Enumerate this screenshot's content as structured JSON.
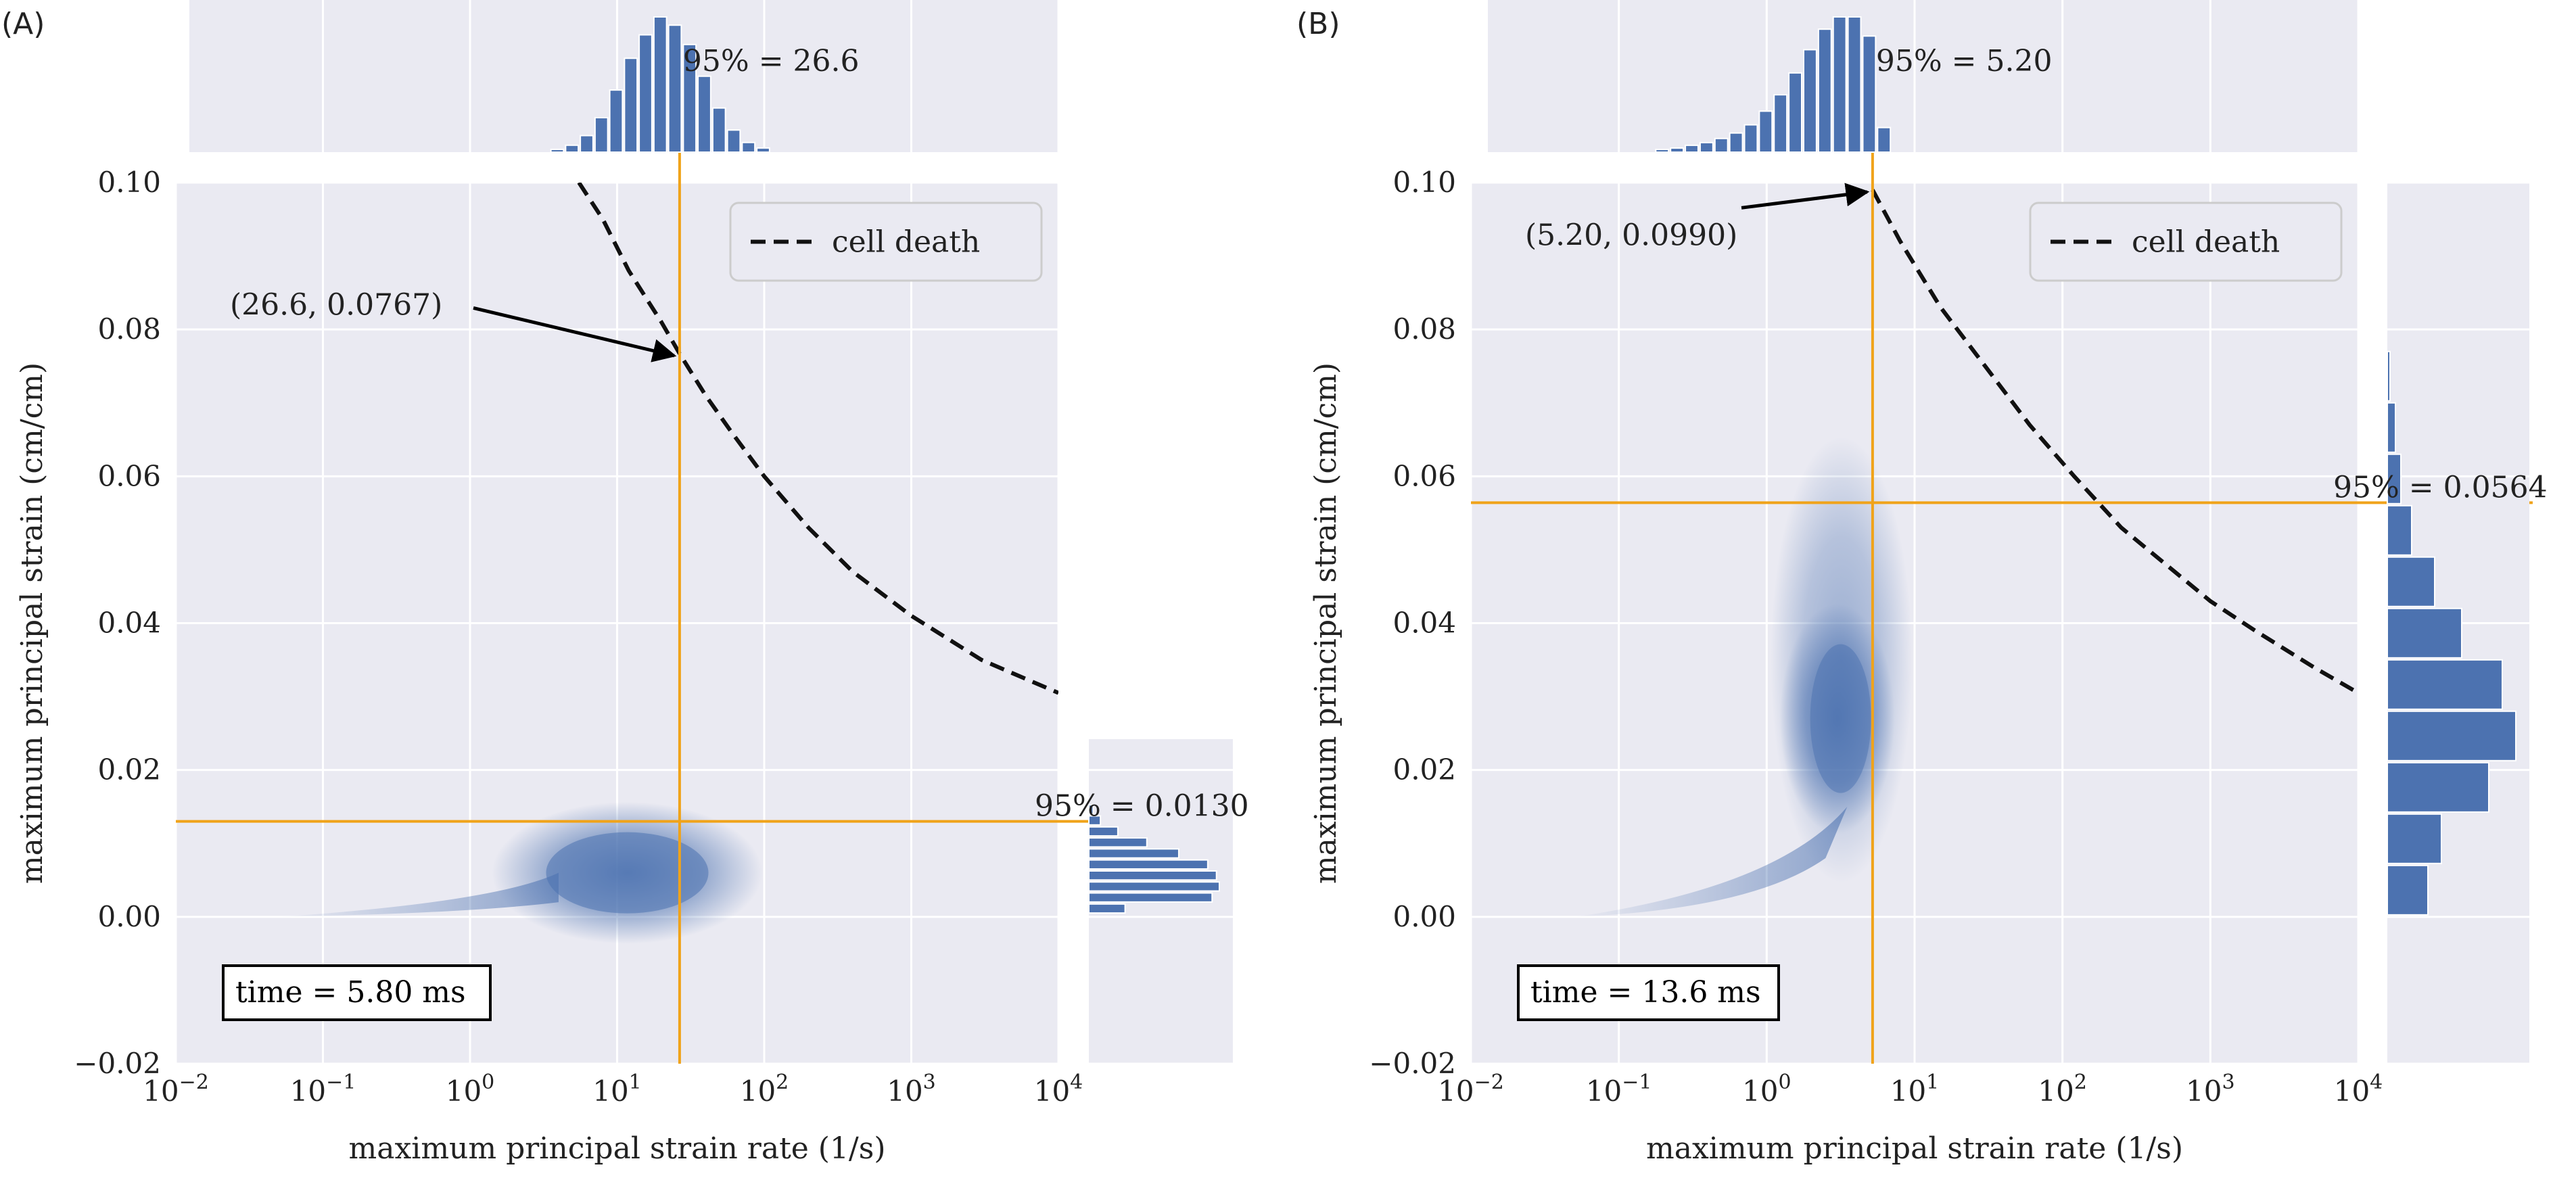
{
  "chart_data": [
    {
      "type": "scatter",
      "panel_label": "(A)",
      "xlabel": "maximum principal strain rate (1/s)",
      "ylabel": "maximum principal strain (cm/cm)",
      "x_scale": "log",
      "xlim": [
        0.01,
        10000
      ],
      "ylim": [
        -0.02,
        0.1
      ],
      "x_ticks": [
        "10",
        "10",
        "10",
        "10",
        "10",
        "10",
        "10"
      ],
      "x_tick_exponents": [
        "−2",
        "−1",
        "0",
        "1",
        "2",
        "3",
        "4"
      ],
      "x_tick_values": [
        0.01,
        0.1,
        1,
        10,
        100,
        1000,
        10000
      ],
      "y_ticks": [
        "0.10",
        "0.08",
        "0.06",
        "0.04",
        "0.02",
        "0.00",
        "−0.02"
      ],
      "y_tick_values": [
        0.1,
        0.08,
        0.06,
        0.04,
        0.02,
        0.0,
        -0.02
      ],
      "grid": true,
      "legend": {
        "entries": [
          "cell death"
        ],
        "placement": "top-right"
      },
      "cell_death_curve": {
        "x": [
          5.5,
          8,
          12,
          20,
          26.6,
          40,
          60,
          100,
          200,
          400,
          1000,
          3000,
          10000
        ],
        "y": [
          0.1,
          0.095,
          0.088,
          0.081,
          0.0767,
          0.071,
          0.066,
          0.06,
          0.053,
          0.047,
          0.041,
          0.035,
          0.0305
        ]
      },
      "threshold_x": 26.6,
      "threshold_y": 0.013,
      "annotation": "(26.6, 0.0767)",
      "annotation_point": [
        26.6,
        0.0767
      ],
      "top_label": "95% = 26.6",
      "right_label": "95% = 0.0130",
      "time_label": "time = 5.80 ms",
      "scatter_cloud": {
        "center_x": 10,
        "center_y": 0.006,
        "tail_from_x": 0.05
      },
      "top_histogram": {
        "bin_log_centers": [
          0.6,
          0.7,
          0.8,
          0.9,
          1.0,
          1.1,
          1.2,
          1.3,
          1.4,
          1.5,
          1.6,
          1.7,
          1.8,
          1.9,
          2.0
        ],
        "counts": [
          2,
          5,
          12,
          25,
          45,
          68,
          85,
          98,
          92,
          78,
          55,
          32,
          16,
          7,
          3
        ]
      },
      "right_histogram": {
        "bin_centers": [
          0.001,
          0.0025,
          0.004,
          0.0055,
          0.007,
          0.0085,
          0.01,
          0.0115,
          0.013,
          0.0145
        ],
        "counts": [
          25,
          85,
          90,
          88,
          82,
          62,
          40,
          20,
          8,
          3
        ]
      }
    },
    {
      "type": "scatter",
      "panel_label": "(B)",
      "xlabel": "maximum principal strain rate (1/s)",
      "ylabel": "maximum principal strain (cm/cm)",
      "x_scale": "log",
      "xlim": [
        0.01,
        10000
      ],
      "ylim": [
        -0.02,
        0.1
      ],
      "x_ticks": [
        "10",
        "10",
        "10",
        "10",
        "10",
        "10",
        "10"
      ],
      "x_tick_exponents": [
        "−2",
        "−1",
        "0",
        "1",
        "2",
        "3",
        "4"
      ],
      "x_tick_values": [
        0.01,
        0.1,
        1,
        10,
        100,
        1000,
        10000
      ],
      "y_ticks": [
        "0.10",
        "0.08",
        "0.06",
        "0.04",
        "0.02",
        "0.00",
        "−0.02"
      ],
      "y_tick_values": [
        0.1,
        0.08,
        0.06,
        0.04,
        0.02,
        0.0,
        -0.02
      ],
      "grid": true,
      "legend": {
        "entries": [
          "cell death"
        ],
        "placement": "top-right"
      },
      "cell_death_curve": {
        "x": [
          5.2,
          8,
          15,
          30,
          60,
          120,
          250,
          500,
          1000,
          2000,
          5000,
          10000
        ],
        "y": [
          0.099,
          0.092,
          0.083,
          0.075,
          0.067,
          0.06,
          0.053,
          0.048,
          0.043,
          0.039,
          0.034,
          0.0305
        ]
      },
      "threshold_x": 5.2,
      "threshold_y": 0.0564,
      "annotation": "(5.20, 0.0990)",
      "annotation_point": [
        5.2,
        0.099
      ],
      "top_label": "95% = 5.20",
      "right_label": "95% = 0.0564",
      "time_label": "time = 13.6 ms",
      "scatter_cloud": {
        "center_x": 3,
        "center_y": 0.027,
        "tail_from_x": 0.05
      },
      "top_histogram": {
        "bin_log_centers": [
          -0.7,
          -0.6,
          -0.5,
          -0.4,
          -0.3,
          -0.2,
          -0.1,
          0.0,
          0.1,
          0.2,
          0.3,
          0.4,
          0.5,
          0.6,
          0.7,
          0.8
        ],
        "counts": [
          2,
          3,
          5,
          7,
          10,
          14,
          20,
          30,
          42,
          58,
          75,
          90,
          99,
          99,
          85,
          18
        ]
      },
      "right_histogram": {
        "bin_centers": [
          0.0035,
          0.0105,
          0.0175,
          0.0245,
          0.0315,
          0.0385,
          0.0455,
          0.0525,
          0.0595,
          0.0665,
          0.0735
        ],
        "counts": [
          30,
          40,
          75,
          95,
          85,
          55,
          35,
          18,
          10,
          6,
          2
        ]
      }
    }
  ]
}
